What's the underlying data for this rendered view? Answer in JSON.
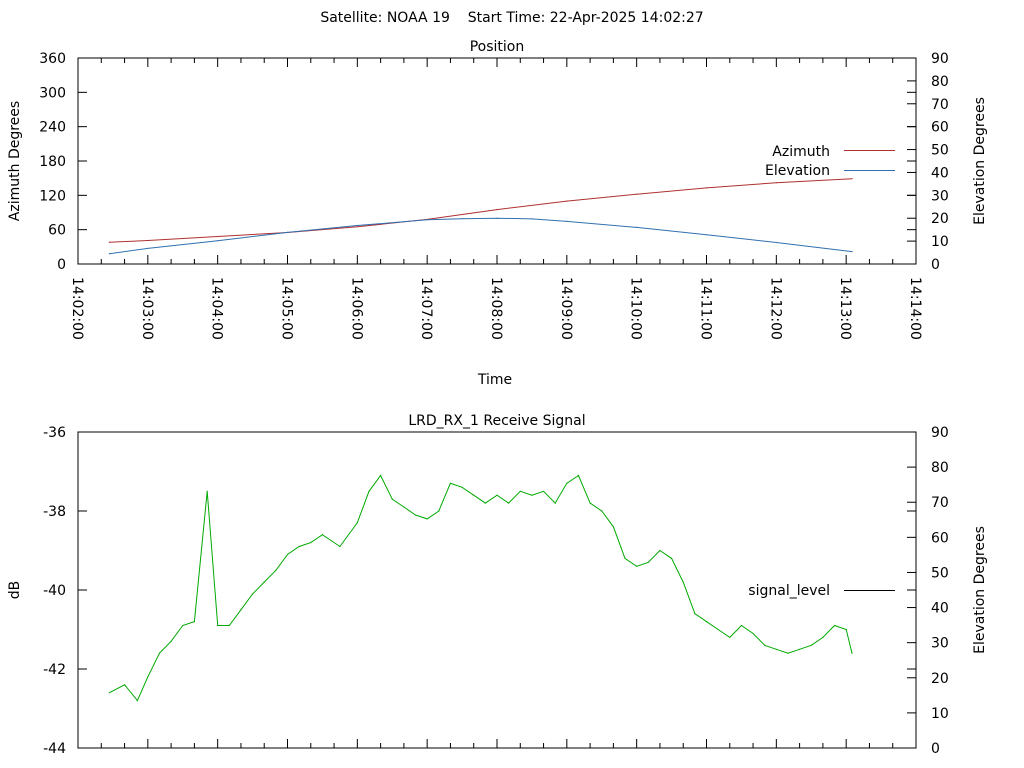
{
  "header": {
    "title": "Satellite: NOAA 19    Start Time: 22-Apr-2025 14:02:27"
  },
  "chart_data": [
    {
      "type": "line",
      "title": "Position",
      "xlabel": "Time",
      "ylabel": "Azimuth Degrees",
      "y2label": "Elevation Degrees",
      "ylim": [
        0,
        360
      ],
      "y2lim": [
        0,
        90
      ],
      "yticks": [
        "0",
        "60",
        "120",
        "180",
        "240",
        "300",
        "360"
      ],
      "y2ticks": [
        "0",
        "10",
        "20",
        "30",
        "40",
        "50",
        "60",
        "70",
        "80",
        "90"
      ],
      "xlim": [
        "14:02:00",
        "14:14:00"
      ],
      "xticks": [
        "14:02:00",
        "14:03:00",
        "14:04:00",
        "14:05:00",
        "14:06:00",
        "14:07:00",
        "14:08:00",
        "14:09:00",
        "14:10:00",
        "14:11:00",
        "14:12:00",
        "14:13:00",
        "14:14:00"
      ],
      "grid": false,
      "legend_position": "right",
      "series": [
        {
          "name": "Azimuth",
          "axis": "left",
          "color": "#b03030",
          "x": [
            "14:02:27",
            "14:03:00",
            "14:04:00",
            "14:05:00",
            "14:06:00",
            "14:07:00",
            "14:08:00",
            "14:09:00",
            "14:10:00",
            "14:11:00",
            "14:12:00",
            "14:13:05"
          ],
          "y": [
            38,
            41,
            48,
            55,
            65,
            78,
            95,
            110,
            122,
            133,
            142,
            149
          ]
        },
        {
          "name": "Elevation",
          "axis": "right",
          "color": "#3070b0",
          "x": [
            "14:02:27",
            "14:03:00",
            "14:04:00",
            "14:05:00",
            "14:06:00",
            "14:07:00",
            "14:07:30",
            "14:08:00",
            "14:08:30",
            "14:09:00",
            "14:10:00",
            "14:11:00",
            "14:12:00",
            "14:13:05"
          ],
          "y": [
            4.5,
            6.8,
            10.2,
            13.8,
            16.8,
            19.3,
            19.8,
            20,
            19.7,
            18.6,
            16,
            12.8,
            9.4,
            5.4
          ]
        }
      ]
    },
    {
      "type": "line",
      "title": "LRD_RX_1 Receive Signal",
      "xlabel": "",
      "ylabel": "dB",
      "y2label": "Elevation Degrees",
      "ylim": [
        -44,
        -36
      ],
      "y2lim": [
        0,
        90
      ],
      "yticks": [
        "-44",
        "-42",
        "-40",
        "-38",
        "-36"
      ],
      "y2ticks": [
        "0",
        "10",
        "20",
        "30",
        "40",
        "50",
        "60",
        "70",
        "80",
        "90"
      ],
      "xlim": [
        "14:02:00",
        "14:14:00"
      ],
      "grid": false,
      "legend_position": "right",
      "series": [
        {
          "name": "signal_level",
          "color": "#00aa00",
          "x": [
            "14:02:27",
            "14:02:40",
            "14:02:51",
            "14:03:00",
            "14:03:10",
            "14:03:20",
            "14:03:30",
            "14:03:40",
            "14:03:51",
            "14:04:00",
            "14:04:10",
            "14:04:20",
            "14:04:30",
            "14:04:40",
            "14:04:50",
            "14:05:00",
            "14:05:10",
            "14:05:20",
            "14:05:30",
            "14:05:45",
            "14:06:00",
            "14:06:10",
            "14:06:20",
            "14:06:30",
            "14:06:40",
            "14:06:50",
            "14:07:00",
            "14:07:10",
            "14:07:20",
            "14:07:30",
            "14:07:40",
            "14:07:50",
            "14:08:00",
            "14:08:10",
            "14:08:20",
            "14:08:30",
            "14:08:40",
            "14:08:50",
            "14:09:00",
            "14:09:10",
            "14:09:20",
            "14:09:30",
            "14:09:40",
            "14:09:50",
            "14:10:00",
            "14:10:10",
            "14:10:20",
            "14:10:30",
            "14:10:40",
            "14:10:50",
            "14:11:00",
            "14:11:10",
            "14:11:20",
            "14:11:30",
            "14:11:40",
            "14:11:50",
            "14:12:00",
            "14:12:10",
            "14:12:20",
            "14:12:30",
            "14:12:40",
            "14:12:50",
            "14:13:00",
            "14:13:05"
          ],
          "y": [
            -42.6,
            -42.4,
            -42.8,
            -42.2,
            -41.6,
            -41.3,
            -40.9,
            -40.8,
            -37.5,
            -40.9,
            -40.9,
            -40.5,
            -40.1,
            -39.8,
            -39.5,
            -39.1,
            -38.9,
            -38.8,
            -38.6,
            -38.9,
            -38.3,
            -37.5,
            -37.1,
            -37.7,
            -37.9,
            -38.1,
            -38.2,
            -38.0,
            -37.3,
            -37.4,
            -37.6,
            -37.8,
            -37.6,
            -37.8,
            -37.5,
            -37.6,
            -37.5,
            -37.8,
            -37.3,
            -37.1,
            -37.8,
            -38.0,
            -38.4,
            -39.2,
            -39.4,
            -39.3,
            -39.0,
            -39.2,
            -39.8,
            -40.6,
            -40.8,
            -41.0,
            -41.2,
            -40.9,
            -41.1,
            -41.4,
            -41.5,
            -41.6,
            -41.5,
            -41.4,
            -41.2,
            -40.9,
            -41.0,
            -41.6
          ]
        }
      ]
    }
  ]
}
